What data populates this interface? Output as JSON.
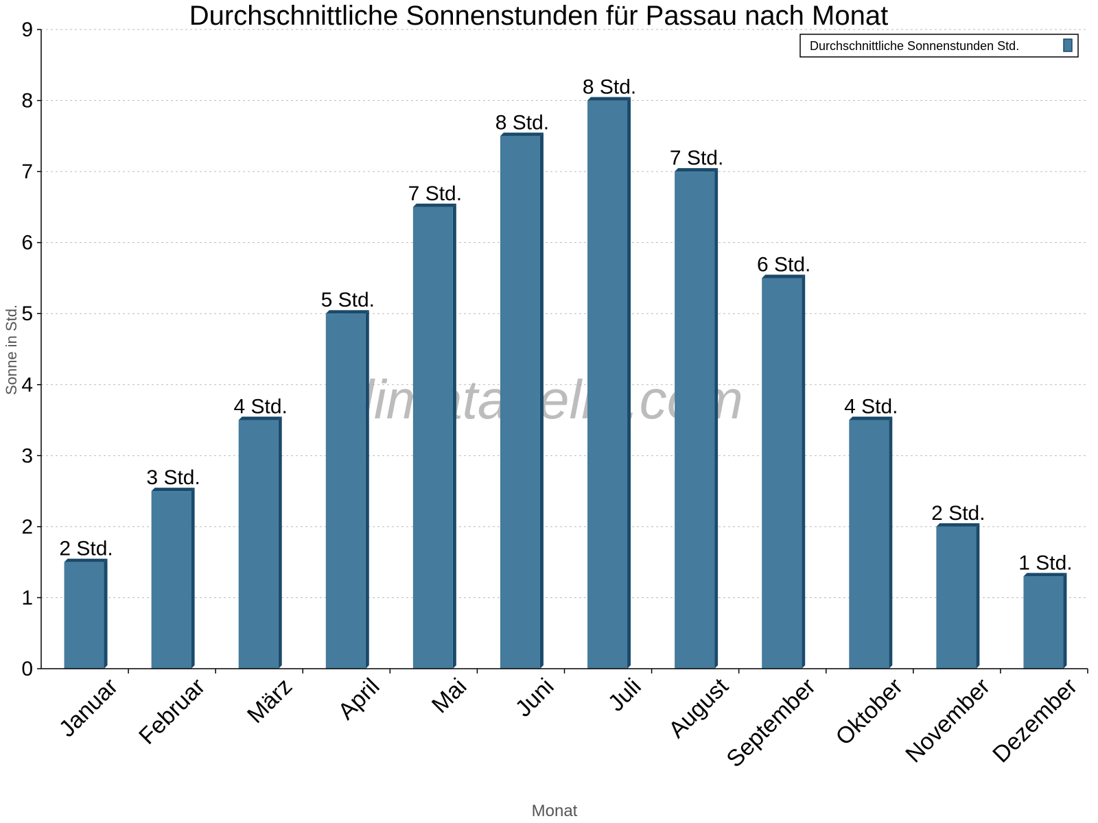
{
  "chart_data": {
    "type": "bar",
    "title": "Durchschnittliche Sonnenstunden für Passau nach Monat",
    "xlabel": "Monat",
    "ylabel": "Sonne in Std.",
    "ylim": [
      0,
      9
    ],
    "yticks": [
      0,
      1,
      2,
      3,
      4,
      5,
      6,
      7,
      8,
      9
    ],
    "grid": true,
    "legend_position": "top-right",
    "categories": [
      "Januar",
      "Februar",
      "März",
      "April",
      "Mai",
      "Juni",
      "Juli",
      "August",
      "September",
      "Oktober",
      "November",
      "Dezember"
    ],
    "series": [
      {
        "name": "Durchschnittliche Sonnenstunden Std.",
        "color": "#457b9d",
        "values": [
          1.5,
          2.5,
          3.5,
          5,
          6.5,
          7.5,
          8,
          7,
          5.5,
          3.5,
          2,
          1.3
        ],
        "data_labels": [
          "2 Std.",
          "3 Std.",
          "4 Std.",
          "5 Std.",
          "7 Std.",
          "8 Std.",
          "8 Std.",
          "7 Std.",
          "6 Std.",
          "4 Std.",
          "2 Std.",
          "1 Std."
        ]
      }
    ],
    "watermark": "klimatabelle.com"
  },
  "colors": {
    "bar": "#457b9d",
    "bar_side": "#1a4a6b"
  }
}
